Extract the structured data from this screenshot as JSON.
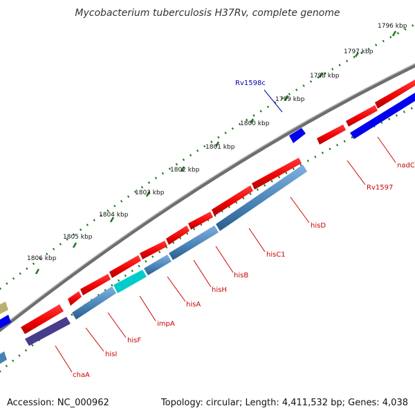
{
  "header": {
    "title": "Mycobacterium tuberculosis H37Rv, complete genome"
  },
  "footer": {
    "accession": "Accession: NC_000962",
    "summary": "Topology: circular; Length: 4,411,532 bp; Genes: 4,038"
  },
  "colors": {
    "backbone": "#777777",
    "forward_gene": "#ff0000",
    "reverse_gene": "#4682b4",
    "reverse_gene_dark": "#483d8b",
    "highlight_gene": "#00cccc",
    "small_gene": "#0000ff",
    "tick": "#1a7a1a",
    "label_forward": "#cc0000",
    "label_blue": "#0000aa"
  },
  "ticks": [
    {
      "label": "1796 kbp"
    },
    {
      "label": "1797 kbp"
    },
    {
      "label": "1798 kbp"
    },
    {
      "label": "1799 kbp"
    },
    {
      "label": "1800 kbp"
    },
    {
      "label": "1801 kbp"
    },
    {
      "label": "1802 kbp"
    },
    {
      "label": "1803 kbp"
    },
    {
      "label": "1804 kbp"
    },
    {
      "label": "1805 kbp"
    },
    {
      "label": "1806 kbp"
    }
  ],
  "genes": [
    {
      "name": "nadC",
      "strand": "reverse"
    },
    {
      "name": "Rv1597",
      "strand": "forward"
    },
    {
      "name": "hisD",
      "strand": "reverse"
    },
    {
      "name": "hisC1",
      "strand": "reverse"
    },
    {
      "name": "hisB",
      "strand": "forward"
    },
    {
      "name": "hisH",
      "strand": "forward"
    },
    {
      "name": "hisA",
      "strand": "forward"
    },
    {
      "name": "impA",
      "strand": "reverse"
    },
    {
      "name": "hisF",
      "strand": "forward"
    },
    {
      "name": "hisI",
      "strand": "forward"
    },
    {
      "name": "chaA",
      "strand": "reverse"
    },
    {
      "name": "Rv1598c",
      "strand": "reverse"
    }
  ]
}
